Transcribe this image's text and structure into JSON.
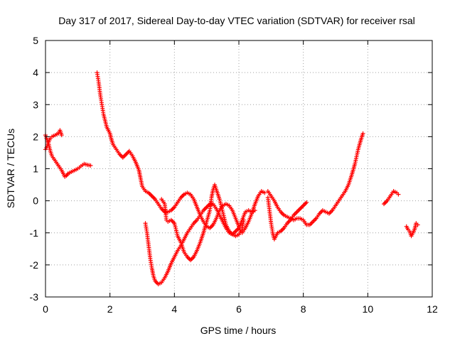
{
  "chart_data": {
    "type": "scatter",
    "title": "Day 317 of 2017, Sidereal Day-to-day VTEC variation (SDTVAR) for receiver rsal",
    "xlabel": "GPS time / hours",
    "ylabel": "SDTVAR / TECUs",
    "xlim": [
      0,
      12
    ],
    "ylim": [
      -3,
      5
    ],
    "x_ticks": [
      "0",
      "2",
      "4",
      "6",
      "8",
      "10",
      "12"
    ],
    "y_ticks": [
      "-3",
      "-2",
      "-1",
      "0",
      "1",
      "2",
      "3",
      "4",
      "5"
    ],
    "grid": true,
    "marker": "plus",
    "color": "#ff0000",
    "series": [
      {
        "segments": [
          [
            [
              0.0,
              2.05
            ],
            [
              0.05,
              1.9
            ],
            [
              0.1,
              1.75
            ],
            [
              0.15,
              1.55
            ],
            [
              0.2,
              1.4
            ],
            [
              0.3,
              1.25
            ],
            [
              0.4,
              1.1
            ],
            [
              0.5,
              0.95
            ],
            [
              0.55,
              0.85
            ],
            [
              0.6,
              0.75
            ],
            [
              0.65,
              0.78
            ],
            [
              0.7,
              0.85
            ],
            [
              0.8,
              0.9
            ],
            [
              0.9,
              0.95
            ],
            [
              1.0,
              1.0
            ],
            [
              1.1,
              1.08
            ],
            [
              1.2,
              1.15
            ],
            [
              1.3,
              1.12
            ],
            [
              1.4,
              1.1
            ]
          ],
          [
            [
              0.0,
              1.6
            ],
            [
              0.05,
              1.7
            ],
            [
              0.1,
              1.85
            ],
            [
              0.15,
              1.95
            ],
            [
              0.2,
              2.0
            ],
            [
              0.3,
              2.05
            ],
            [
              0.4,
              2.1
            ],
            [
              0.45,
              2.2
            ],
            [
              0.5,
              2.05
            ]
          ],
          [
            [
              1.6,
              4.0
            ],
            [
              1.65,
              3.7
            ],
            [
              1.7,
              3.3
            ],
            [
              1.75,
              3.0
            ],
            [
              1.8,
              2.7
            ],
            [
              1.85,
              2.5
            ],
            [
              1.9,
              2.3
            ],
            [
              2.0,
              2.1
            ],
            [
              2.05,
              1.9
            ],
            [
              2.1,
              1.75
            ],
            [
              2.2,
              1.6
            ],
            [
              2.3,
              1.45
            ],
            [
              2.4,
              1.35
            ],
            [
              2.5,
              1.45
            ],
            [
              2.6,
              1.55
            ],
            [
              2.7,
              1.4
            ],
            [
              2.8,
              1.2
            ],
            [
              2.9,
              0.95
            ],
            [
              2.95,
              0.7
            ],
            [
              3.0,
              0.45
            ],
            [
              3.1,
              0.3
            ],
            [
              3.2,
              0.25
            ],
            [
              3.3,
              0.15
            ],
            [
              3.4,
              0.05
            ],
            [
              3.5,
              -0.1
            ],
            [
              3.6,
              -0.25
            ],
            [
              3.7,
              -0.35
            ],
            [
              3.8,
              -0.35
            ],
            [
              3.9,
              -0.3
            ],
            [
              4.0,
              -0.2
            ],
            [
              4.1,
              -0.05
            ],
            [
              4.2,
              0.1
            ],
            [
              4.3,
              0.2
            ],
            [
              4.4,
              0.25
            ],
            [
              4.5,
              0.2
            ],
            [
              4.6,
              0.05
            ],
            [
              4.7,
              -0.2
            ],
            [
              4.8,
              -0.45
            ],
            [
              4.9,
              -0.65
            ],
            [
              5.0,
              -0.8
            ],
            [
              5.1,
              -0.85
            ],
            [
              5.2,
              -0.75
            ],
            [
              5.3,
              -0.55
            ],
            [
              5.4,
              -0.3
            ],
            [
              5.5,
              -0.15
            ],
            [
              5.6,
              -0.1
            ],
            [
              5.7,
              -0.15
            ],
            [
              5.8,
              -0.3
            ],
            [
              5.9,
              -0.55
            ],
            [
              6.0,
              -0.8
            ],
            [
              6.05,
              -0.95
            ],
            [
              6.1,
              -1.0
            ],
            [
              6.2,
              -0.85
            ],
            [
              6.3,
              -0.65
            ],
            [
              6.4,
              -0.4
            ],
            [
              6.5,
              -0.1
            ],
            [
              6.6,
              0.15
            ],
            [
              6.7,
              0.3
            ],
            [
              6.8,
              0.25
            ]
          ],
          [
            [
              3.1,
              -0.7
            ],
            [
              3.15,
              -1.0
            ],
            [
              3.2,
              -1.4
            ],
            [
              3.25,
              -1.8
            ],
            [
              3.3,
              -2.1
            ],
            [
              3.35,
              -2.35
            ],
            [
              3.4,
              -2.5
            ],
            [
              3.5,
              -2.6
            ],
            [
              3.6,
              -2.55
            ],
            [
              3.7,
              -2.4
            ],
            [
              3.8,
              -2.2
            ],
            [
              3.9,
              -1.95
            ],
            [
              4.0,
              -1.75
            ],
            [
              4.1,
              -1.55
            ],
            [
              4.2,
              -1.4
            ],
            [
              4.3,
              -1.2
            ],
            [
              4.4,
              -1.0
            ],
            [
              4.5,
              -0.85
            ],
            [
              4.6,
              -0.7
            ],
            [
              4.7,
              -0.6
            ],
            [
              4.8,
              -0.45
            ],
            [
              4.9,
              -0.3
            ],
            [
              5.0,
              -0.2
            ],
            [
              5.1,
              -0.1
            ],
            [
              5.2,
              -0.1
            ],
            [
              5.3,
              -0.25
            ],
            [
              5.4,
              -0.45
            ],
            [
              5.5,
              -0.65
            ],
            [
              5.6,
              -0.85
            ],
            [
              5.7,
              -1.0
            ],
            [
              5.8,
              -1.05
            ],
            [
              5.9,
              -0.95
            ],
            [
              6.0,
              -0.85
            ],
            [
              6.1,
              -0.6
            ],
            [
              6.2,
              -0.35
            ],
            [
              6.3,
              -0.3
            ],
            [
              6.4,
              -0.35
            ],
            [
              6.5,
              -0.3
            ]
          ],
          [
            [
              3.6,
              0.05
            ],
            [
              3.7,
              -0.1
            ],
            [
              3.75,
              -0.6
            ],
            [
              3.8,
              -0.65
            ],
            [
              3.9,
              -0.6
            ],
            [
              4.0,
              -0.7
            ],
            [
              4.1,
              -1.1
            ],
            [
              4.2,
              -1.3
            ],
            [
              4.3,
              -1.6
            ],
            [
              4.4,
              -1.75
            ],
            [
              4.5,
              -1.85
            ],
            [
              4.6,
              -1.75
            ],
            [
              4.7,
              -1.55
            ],
            [
              4.8,
              -1.3
            ],
            [
              4.9,
              -1.0
            ],
            [
              5.0,
              -0.65
            ],
            [
              5.1,
              -0.3
            ],
            [
              5.15,
              0.1
            ],
            [
              5.2,
              0.35
            ],
            [
              5.25,
              0.5
            ],
            [
              5.3,
              0.35
            ],
            [
              5.4,
              0.05
            ],
            [
              5.5,
              -0.35
            ],
            [
              5.6,
              -0.75
            ],
            [
              5.7,
              -0.95
            ],
            [
              5.8,
              -1.05
            ],
            [
              5.9,
              -1.1
            ],
            [
              6.0,
              -1.05
            ],
            [
              6.1,
              -0.9
            ],
            [
              6.15,
              -0.6
            ]
          ],
          [
            [
              6.9,
              0.1
            ],
            [
              6.95,
              -0.3
            ],
            [
              7.0,
              -0.7
            ],
            [
              7.05,
              -1.0
            ],
            [
              7.1,
              -1.2
            ],
            [
              7.2,
              -1.0
            ],
            [
              7.3,
              -0.95
            ],
            [
              7.4,
              -0.85
            ],
            [
              7.5,
              -0.7
            ],
            [
              7.6,
              -0.6
            ],
            [
              7.7,
              -0.45
            ],
            [
              7.8,
              -0.35
            ],
            [
              7.9,
              -0.25
            ],
            [
              8.0,
              -0.15
            ],
            [
              8.1,
              -0.05
            ]
          ],
          [
            [
              6.9,
              0.3
            ],
            [
              7.0,
              0.15
            ],
            [
              7.1,
              0.0
            ],
            [
              7.2,
              -0.2
            ],
            [
              7.3,
              -0.35
            ],
            [
              7.4,
              -0.45
            ],
            [
              7.5,
              -0.5
            ],
            [
              7.6,
              -0.55
            ],
            [
              7.7,
              -0.6
            ],
            [
              7.8,
              -0.55
            ],
            [
              7.9,
              -0.55
            ],
            [
              8.0,
              -0.6
            ],
            [
              8.1,
              -0.75
            ],
            [
              8.2,
              -0.75
            ],
            [
              8.3,
              -0.65
            ],
            [
              8.4,
              -0.55
            ],
            [
              8.5,
              -0.4
            ],
            [
              8.6,
              -0.3
            ],
            [
              8.7,
              -0.35
            ],
            [
              8.8,
              -0.4
            ],
            [
              8.9,
              -0.3
            ],
            [
              9.0,
              -0.15
            ],
            [
              9.1,
              0.0
            ],
            [
              9.2,
              0.15
            ],
            [
              9.3,
              0.3
            ],
            [
              9.4,
              0.5
            ],
            [
              9.5,
              0.8
            ],
            [
              9.6,
              1.15
            ],
            [
              9.7,
              1.6
            ],
            [
              9.8,
              1.95
            ],
            [
              9.85,
              2.1
            ]
          ],
          [
            [
              10.5,
              -0.1
            ],
            [
              10.6,
              0.0
            ],
            [
              10.7,
              0.15
            ],
            [
              10.8,
              0.3
            ],
            [
              10.9,
              0.25
            ],
            [
              10.95,
              0.2
            ]
          ],
          [
            [
              11.2,
              -0.8
            ],
            [
              11.25,
              -0.9
            ],
            [
              11.3,
              -0.95
            ],
            [
              11.35,
              -1.1
            ],
            [
              11.4,
              -1.0
            ],
            [
              11.45,
              -0.9
            ],
            [
              11.5,
              -0.7
            ],
            [
              11.55,
              -0.75
            ]
          ]
        ]
      }
    ]
  }
}
